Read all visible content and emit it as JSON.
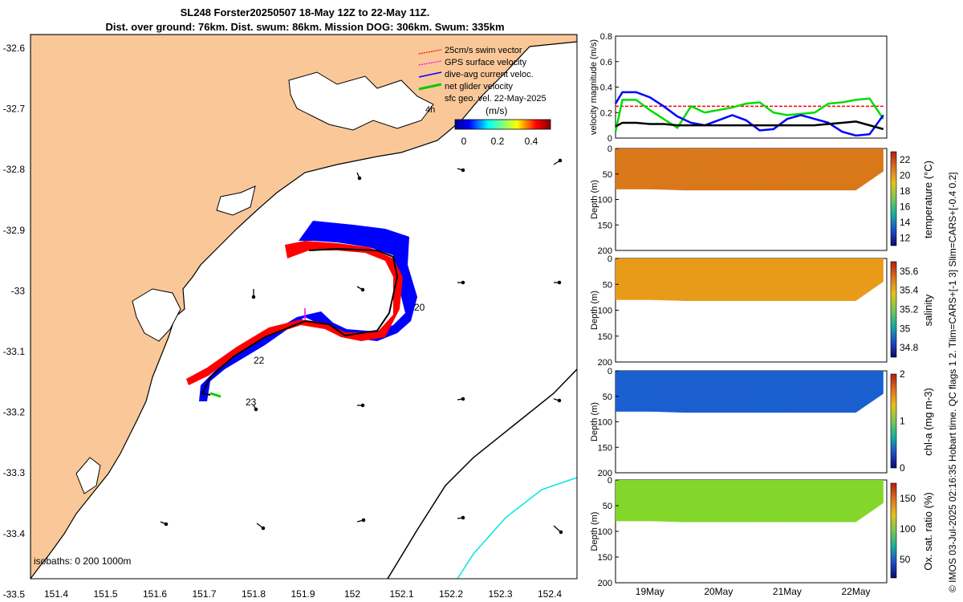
{
  "header": {
    "title_line1": "SL248 Forster20250507 18-May 12Z to 22-May 11Z.",
    "title_line2": "Dist. over ground: 76km. Dist. swum: 86km. Mission DOG: 306km. Swum: 335km"
  },
  "map": {
    "lat_ticks": [
      "-32.6",
      "-32.7",
      "-32.8",
      "-32.9",
      "-33",
      "-33.1",
      "-33.2",
      "-33.3",
      "-33.4",
      "-33.5"
    ],
    "lon_ticks": [
      "151.4",
      "151.5",
      "151.6",
      "151.7",
      "151.8",
      "151.9",
      "152",
      "152.1",
      "152.2",
      "152.3",
      "152.4"
    ],
    "legend": [
      {
        "label": "25cm/s swim vector",
        "color": "#ff0000"
      },
      {
        "label": "GPS surface velocity",
        "color": "#ff00ff"
      },
      {
        "label": "dive-avg current veloc.",
        "color": "#0000ff"
      },
      {
        "label": "net glider velocity",
        "color": "#00cc00"
      },
      {
        "label": "sfc geo. vel. 22-May-2025",
        "color": "#000000"
      }
    ],
    "legend_4h": "4h",
    "colorbar_unit": "(m/s)",
    "colorbar_ticks": [
      "0",
      "0.2",
      "0.4"
    ],
    "day_labels": [
      "20",
      "22",
      "23"
    ],
    "isobaths_label": "isobaths: 0   200  1000m",
    "colors": {
      "land": "#fac898",
      "ocean": "#ffffff",
      "track_red": "#ff0000",
      "track_blue": "#0000ff",
      "iso200": "#000000",
      "iso1000": "#00e5e5"
    }
  },
  "chart_data": [
    {
      "type": "line",
      "title": "",
      "ylabel": "velocity magnitude (m/s)",
      "ylim": [
        0,
        0.8
      ],
      "yticks": [
        "0",
        "0.2",
        "0.4",
        "0.6",
        "0.8"
      ],
      "x": [
        18.5,
        18.6,
        18.8,
        19.0,
        19.2,
        19.4,
        19.6,
        19.8,
        20.0,
        20.2,
        20.4,
        20.6,
        20.8,
        21.0,
        21.2,
        21.4,
        21.6,
        21.8,
        22.0,
        22.2,
        22.4
      ],
      "series": [
        {
          "name": "swim",
          "color": "#ff0000",
          "dashed": true,
          "values": [
            0.25,
            0.25,
            0.25,
            0.25,
            0.25,
            0.25,
            0.25,
            0.25,
            0.25,
            0.25,
            0.25,
            0.25,
            0.25,
            0.25,
            0.25,
            0.25,
            0.25,
            0.25,
            0.25,
            0.25,
            0.25
          ]
        },
        {
          "name": "net glider",
          "color": "#00dd00",
          "values": [
            0.05,
            0.3,
            0.3,
            0.22,
            0.15,
            0.08,
            0.25,
            0.2,
            0.22,
            0.24,
            0.27,
            0.28,
            0.2,
            0.18,
            0.19,
            0.2,
            0.27,
            0.28,
            0.3,
            0.31,
            0.15
          ]
        },
        {
          "name": "dive-avg current",
          "color": "#0000ff",
          "values": [
            0.27,
            0.36,
            0.36,
            0.32,
            0.25,
            0.17,
            0.12,
            0.1,
            0.14,
            0.18,
            0.14,
            0.06,
            0.07,
            0.15,
            0.18,
            0.15,
            0.12,
            0.05,
            0.02,
            0.03,
            0.18
          ]
        },
        {
          "name": "sfc geo",
          "color": "#000000",
          "values": [
            0.09,
            0.12,
            0.12,
            0.11,
            0.11,
            0.1,
            0.1,
            0.1,
            0.1,
            0.1,
            0.1,
            0.1,
            0.1,
            0.1,
            0.1,
            0.1,
            0.11,
            0.12,
            0.13,
            0.1,
            0.07
          ]
        }
      ]
    },
    {
      "type": "heatmap",
      "ylabel": "Depth (m)",
      "cbar_label": "temperature (°C)",
      "depth_ticks": [
        "0",
        "50",
        "100",
        "150",
        "200"
      ],
      "cbar_ticks": [
        "22",
        "20",
        "18",
        "16",
        "14",
        "12"
      ],
      "vlim": [
        11,
        23
      ],
      "x": [
        18.5,
        19.0,
        19.5,
        20.0,
        20.5,
        21.0,
        21.5,
        22.0,
        22.4
      ],
      "max_depth": [
        80,
        80,
        82,
        82,
        82,
        82,
        82,
        82,
        45
      ],
      "values": [
        21,
        21.2,
        21.3,
        21.5,
        21.5,
        21.6,
        21.8,
        22,
        21.8
      ],
      "fill": "#d9781a"
    },
    {
      "type": "heatmap",
      "ylabel": "Depth (m)",
      "cbar_label": "salinity",
      "depth_ticks": [
        "0",
        "50",
        "100",
        "150",
        "200"
      ],
      "cbar_ticks": [
        "35.6",
        "35.4",
        "35.2",
        "35",
        "34.8"
      ],
      "vlim": [
        34.7,
        35.7
      ],
      "x": [
        18.5,
        19.0,
        19.5,
        20.0,
        20.5,
        21.0,
        21.5,
        22.0,
        22.4
      ],
      "max_depth": [
        80,
        80,
        82,
        82,
        82,
        82,
        82,
        82,
        45
      ],
      "values": [
        35.5,
        35.5,
        35.5,
        35.45,
        35.5,
        35.5,
        35.5,
        35.5,
        35.5
      ],
      "fill": "#e89b1a"
    },
    {
      "type": "heatmap",
      "ylabel": "Depth (m)",
      "cbar_label": "chl-a (mg m-3)",
      "depth_ticks": [
        "0",
        "50",
        "100",
        "150",
        "200"
      ],
      "cbar_ticks": [
        "2",
        "1",
        "0"
      ],
      "vlim": [
        0,
        2
      ],
      "x": [
        18.5,
        19.0,
        19.5,
        20.0,
        20.5,
        21.0,
        21.5,
        22.0,
        22.4
      ],
      "max_depth": [
        80,
        80,
        82,
        82,
        82,
        82,
        82,
        82,
        45
      ],
      "values": [
        0.4,
        0.35,
        0.35,
        0.35,
        0.3,
        0.35,
        0.35,
        0.4,
        0.4
      ],
      "fill": "#1a5fcf"
    },
    {
      "type": "heatmap",
      "ylabel": "Depth (m)",
      "cbar_label": "Ox. sat. ratio (%)",
      "depth_ticks": [
        "0",
        "50",
        "100",
        "150",
        "200"
      ],
      "cbar_ticks": [
        "150",
        "100",
        "50"
      ],
      "vlim": [
        20,
        175
      ],
      "x": [
        18.5,
        19.0,
        19.5,
        20.0,
        20.5,
        21.0,
        21.5,
        22.0,
        22.4
      ],
      "max_depth": [
        80,
        80,
        82,
        82,
        82,
        82,
        82,
        82,
        45
      ],
      "values": [
        130,
        130,
        128,
        130,
        128,
        130,
        128,
        130,
        130
      ],
      "fill": "#84d62a"
    }
  ],
  "time_axis": {
    "ticks": [
      "19May",
      "20May",
      "21May",
      "22May"
    ]
  },
  "footer": {
    "side_note": "© IMOS 03-Jul-2025 02:16:35 Hobart time. QC flags 1  2. Tlim=CARS+[-1 3] Slim=CARS+[-0.4 0.2]"
  }
}
